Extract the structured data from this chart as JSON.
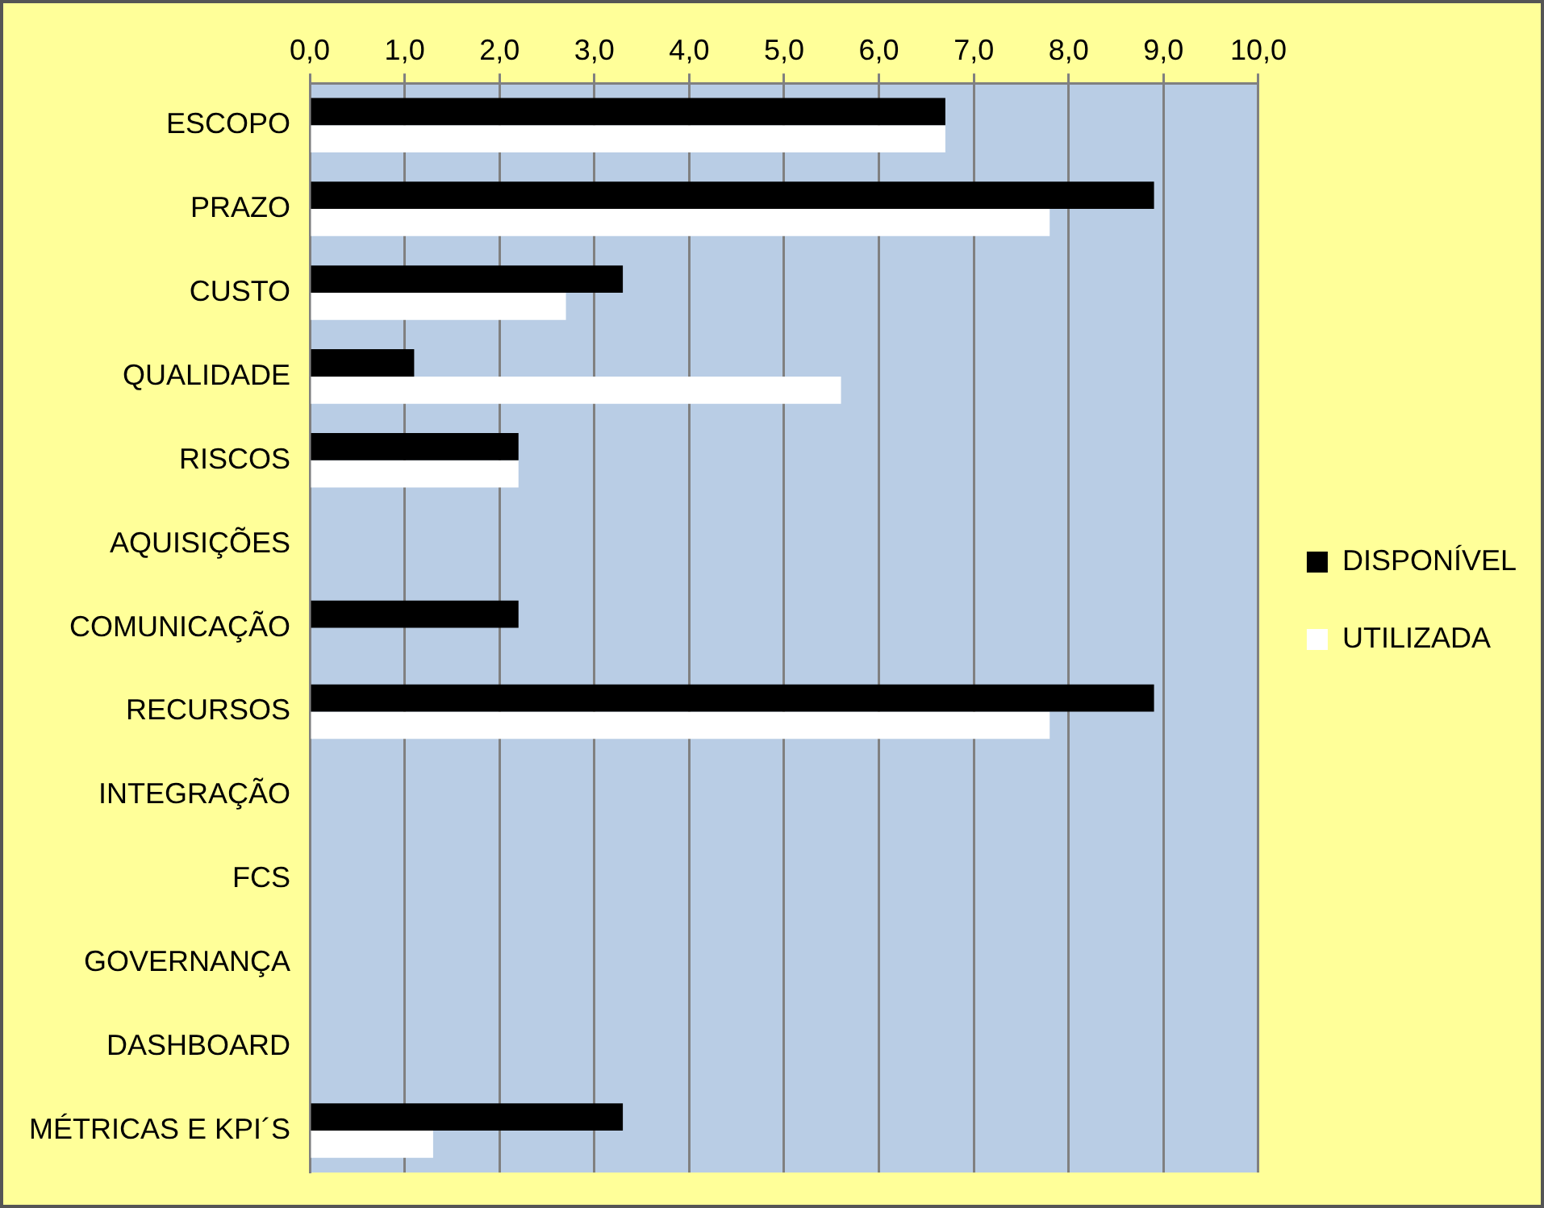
{
  "chart_data": {
    "type": "bar",
    "orientation": "horizontal",
    "categories": [
      "ESCOPO",
      "PRAZO",
      "CUSTO",
      "QUALIDADE",
      "RISCOS",
      "AQUISIÇÕES",
      "COMUNICAÇÃO",
      "RECURSOS",
      "INTEGRAÇÃO",
      "FCS",
      "GOVERNANÇA",
      "DASHBOARD",
      "MÉTRICAS E KPI´S"
    ],
    "series": [
      {
        "name": "DISPONÍVEL",
        "color": "#000000",
        "values": [
          6.7,
          8.9,
          3.3,
          1.1,
          2.2,
          0,
          2.2,
          8.9,
          0,
          0,
          0,
          0,
          3.3
        ]
      },
      {
        "name": "UTILIZADA",
        "color": "#ffffff",
        "values": [
          6.7,
          7.8,
          2.7,
          5.6,
          2.2,
          0,
          0,
          7.8,
          0,
          0,
          0,
          0,
          1.3
        ]
      }
    ],
    "xlim": [
      0,
      10
    ],
    "xticks": [
      {
        "value": 0,
        "label": "0,0"
      },
      {
        "value": 1,
        "label": "1,0"
      },
      {
        "value": 2,
        "label": "2,0"
      },
      {
        "value": 3,
        "label": "3,0"
      },
      {
        "value": 4,
        "label": "4,0"
      },
      {
        "value": 5,
        "label": "5,0"
      },
      {
        "value": 6,
        "label": "6,0"
      },
      {
        "value": 7,
        "label": "7,0"
      },
      {
        "value": 8,
        "label": "8,0"
      },
      {
        "value": 9,
        "label": "9,0"
      },
      {
        "value": 10,
        "label": "10,0"
      }
    ],
    "grid": "x",
    "legend": "right"
  }
}
